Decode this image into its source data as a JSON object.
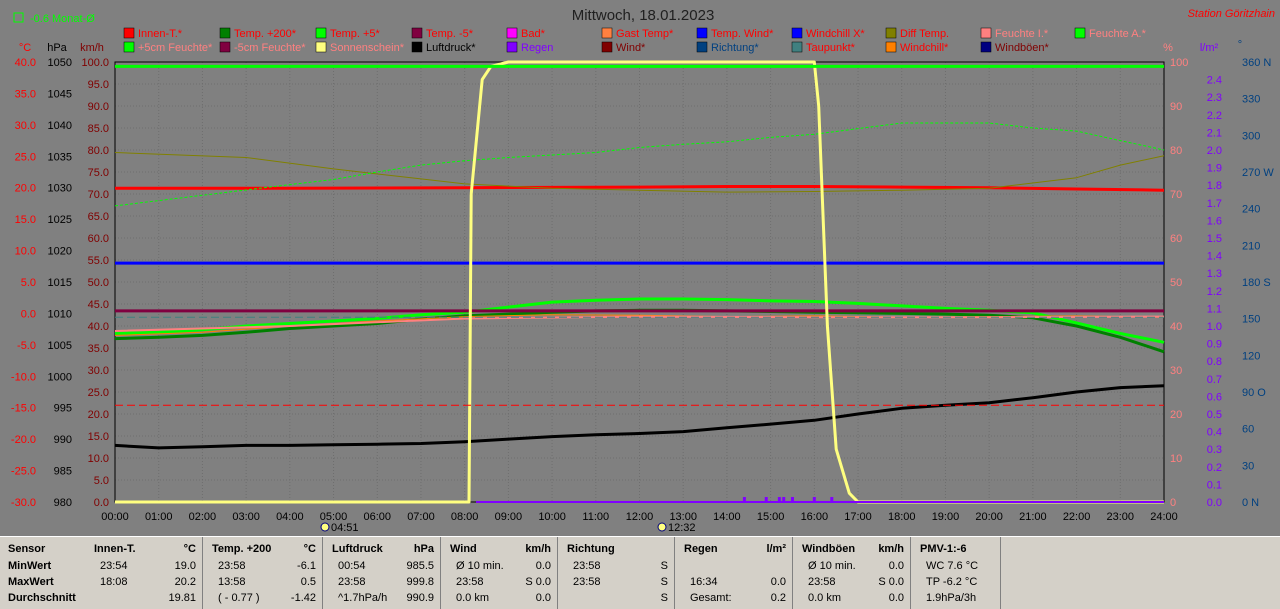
{
  "header": {
    "title": "Mittwoch, 18.01.2023",
    "station": "Station Göritzhain",
    "month_avg": "-0.6 Monat-Ø"
  },
  "axes": {
    "left_temp_unit": "°C",
    "left_press_unit": "hPa",
    "left_speed_unit": "km/h",
    "right_pct_unit": "%",
    "right_rain_unit": "l/m²",
    "right_dir_unit": "°",
    "temp_ticks": [
      "40.0",
      "35.0",
      "30.0",
      "25.0",
      "20.0",
      "15.0",
      "10.0",
      "5.0",
      "0.0",
      "-5.0",
      "-10.0",
      "-15.0",
      "-20.0",
      "-25.0",
      "-30.0"
    ],
    "press_ticks": [
      "1050",
      "1045",
      "1040",
      "1035",
      "1030",
      "1025",
      "1020",
      "1015",
      "1010",
      "1005",
      "1000",
      "995",
      "990",
      "985",
      "980"
    ],
    "speed_ticks": [
      "100.0",
      "95.0",
      "90.0",
      "85.0",
      "80.0",
      "75.0",
      "70.0",
      "65.0",
      "60.0",
      "55.0",
      "50.0",
      "45.0",
      "40.0",
      "35.0",
      "30.0",
      "25.0",
      "20.0",
      "15.0",
      "10.0",
      "5.0",
      "0.0"
    ],
    "pct_ticks": [
      "100",
      "90",
      "80",
      "70",
      "60",
      "50",
      "40",
      "30",
      "20",
      "10",
      "0"
    ],
    "rain_ticks": [
      "2.4",
      "2.3",
      "2.2",
      "2.1",
      "2.0",
      "1.9",
      "1.8",
      "1.7",
      "1.6",
      "1.5",
      "1.4",
      "1.3",
      "1.2",
      "1.1",
      "1.0",
      "0.9",
      "0.8",
      "0.7",
      "0.6",
      "0.5",
      "0.4",
      "0.3",
      "0.2",
      "0.1",
      "0.0"
    ],
    "dir_ticks": [
      "360 N",
      "330",
      "300",
      "270 W",
      "240",
      "210",
      "180 S",
      "150",
      "120",
      "90 O",
      "60",
      "30",
      "0 N"
    ],
    "time_ticks": [
      "00:00",
      "01:00",
      "02:00",
      "03:00",
      "04:00",
      "05:00",
      "06:00",
      "07:00",
      "08:00",
      "09:00",
      "10:00",
      "11:00",
      "12:00",
      "13:00",
      "14:00",
      "15:00",
      "16:00",
      "17:00",
      "18:00",
      "19:00",
      "20:00",
      "21:00",
      "22:00",
      "23:00",
      "24:00"
    ],
    "sunrise": "04:51",
    "noon": "12:32"
  },
  "legend": [
    {
      "label": "Innen-T.*",
      "color": "#ff0000",
      "text_color": "#ff0000"
    },
    {
      "label": "Temp. +200*",
      "color": "#008000",
      "text_color": "#ff0000"
    },
    {
      "label": "Temp. +5*",
      "color": "#00ff00",
      "text_color": "#ff0000"
    },
    {
      "label": "Temp. -5*",
      "color": "#800040",
      "text_color": "#ff0000"
    },
    {
      "label": "Bad*",
      "color": "#ff00ff",
      "text_color": "#ff0000"
    },
    {
      "label": "Gast Temp*",
      "color": "#ff8040",
      "text_color": "#ff0000"
    },
    {
      "label": "Temp. Wind*",
      "color": "#0000ff",
      "text_color": "#ff0000"
    },
    {
      "label": "Windchill X*",
      "color": "#0000ff",
      "text_color": "#ff0000"
    },
    {
      "label": "Diff Temp.",
      "color": "#808000",
      "text_color": "#ff0000"
    },
    {
      "label": "Feuchte I.*",
      "color": "#ff8080",
      "text_color": "#ff8080"
    },
    {
      "label": "Feuchte A.*",
      "color": "#00ff00",
      "text_color": "#ff8080"
    },
    {
      "label": "+5cm Feuchte*",
      "color": "#00ff00",
      "text_color": "#ff8080"
    },
    {
      "label": "-5cm Feuchte*",
      "color": "#800040",
      "text_color": "#ff8080"
    },
    {
      "label": "Sonnenschein*",
      "color": "#ffff80",
      "text_color": "#ff8080"
    },
    {
      "label": "Luftdruck*",
      "color": "#000000",
      "text_color": "#000000"
    },
    {
      "label": "Regen",
      "color": "#8000ff",
      "text_color": "#8000ff"
    },
    {
      "label": "Wind*",
      "color": "#800000",
      "text_color": "#800000"
    },
    {
      "label": "Richtung*",
      "color": "#004080",
      "text_color": "#004080"
    },
    {
      "label": "Taupunkt*",
      "color": "#408080",
      "text_color": "#ff0000"
    },
    {
      "label": "Windchill*",
      "color": "#ff8000",
      "text_color": "#ff0000"
    },
    {
      "label": "Windböen*",
      "color": "#000080",
      "text_color": "#800000"
    }
  ],
  "chart_data": {
    "type": "line",
    "title": "Mittwoch, 18.01.2023",
    "x_unit": "hours",
    "xlim": [
      0,
      24
    ],
    "scales": {
      "temp_C": [
        -30,
        40
      ],
      "pressure_hPa": [
        980,
        1050
      ],
      "speed_kmh": [
        0,
        100
      ],
      "percent": [
        0,
        100
      ],
      "rain_lm2": [
        0,
        2.5
      ],
      "direction_deg": [
        0,
        360
      ]
    },
    "series": [
      {
        "name": "Innen-T.*",
        "scale": "temp_C",
        "color": "#ff0000",
        "width": 3,
        "x": [
          0,
          4,
          8,
          12,
          14,
          16,
          18,
          20,
          22,
          24
        ],
        "y": [
          19.9,
          19.9,
          20.0,
          20.1,
          20.2,
          20.2,
          20.1,
          20.0,
          19.8,
          19.6
        ]
      },
      {
        "name": "Temp. +200*",
        "scale": "temp_C",
        "color": "#008000",
        "width": 3,
        "x": [
          0,
          1,
          2,
          3,
          4,
          5,
          6,
          7,
          8,
          9,
          10,
          11,
          12,
          13,
          14,
          15,
          16,
          17,
          18,
          19,
          20,
          21,
          22,
          23,
          24
        ],
        "y": [
          -4.0,
          -3.8,
          -3.5,
          -3.0,
          -2.4,
          -2.0,
          -1.6,
          -0.9,
          -0.4,
          -0.1,
          0.2,
          0.4,
          0.5,
          0.5,
          0.4,
          0.3,
          0.2,
          0.1,
          0.0,
          -0.1,
          -0.3,
          -0.7,
          -2.0,
          -3.8,
          -6.1
        ]
      },
      {
        "name": "Temp. +5*",
        "scale": "temp_C",
        "color": "#00ff00",
        "width": 3,
        "x": [
          0,
          1,
          2,
          3,
          4,
          5,
          6,
          7,
          8,
          9,
          10,
          11,
          12,
          13,
          14,
          15,
          16,
          17,
          18,
          19,
          20,
          21,
          22,
          23,
          24
        ],
        "y": [
          -3.2,
          -3.0,
          -2.6,
          -2.0,
          -1.6,
          -1.2,
          -0.8,
          -0.2,
          0.2,
          1.0,
          1.8,
          2.1,
          2.3,
          2.3,
          2.2,
          2.0,
          1.9,
          1.6,
          1.2,
          0.8,
          0.5,
          0.1,
          -1.5,
          -3.2,
          -4.6
        ]
      },
      {
        "name": "Temp. -5*",
        "scale": "temp_C",
        "color": "#800040",
        "width": 3,
        "x": [
          0,
          24
        ],
        "y": [
          0.4,
          0.4
        ]
      },
      {
        "name": "Windchill*",
        "scale": "temp_C",
        "color": "#ff8000",
        "width": 1,
        "x": [
          0,
          2,
          4,
          6,
          8,
          10,
          12,
          14,
          16,
          18,
          20,
          22,
          24
        ],
        "y": [
          -3.5,
          -3.0,
          -2.0,
          -1.2,
          -0.5,
          -0.2,
          -0.3,
          -0.5,
          -0.4,
          -0.6,
          -0.5,
          -0.4,
          -0.6
        ]
      },
      {
        "name": "Feuchte I.*",
        "scale": "temp_C",
        "color": "#ff8080",
        "width": 2,
        "x": [
          0,
          4,
          8,
          12,
          16,
          20,
          24
        ],
        "y": [
          -2.8,
          -2.0,
          -0.8,
          -0.5,
          -0.6,
          -0.6,
          -0.5
        ]
      },
      {
        "name": "Diff Temp.",
        "scale": "temp_C",
        "color": "#808000",
        "width": 1,
        "x": [
          0,
          3,
          5,
          7,
          8,
          10,
          12,
          14,
          16,
          18,
          20,
          22,
          23,
          24
        ],
        "y": [
          25.6,
          24.8,
          23.0,
          21.4,
          20.6,
          19.9,
          19.6,
          19.3,
          19.4,
          19.6,
          19.9,
          21.6,
          23.6,
          25.1
        ]
      },
      {
        "name": "+5cm Feuchte*",
        "scale": "temp_C",
        "color": "#00ff00",
        "width": 1,
        "dash": "3,2",
        "x": [
          0,
          2,
          4,
          5,
          6,
          7,
          8,
          9,
          10,
          11,
          12,
          13,
          14,
          15,
          16,
          17,
          18,
          19,
          20,
          21,
          22,
          23,
          24
        ],
        "y": [
          17.1,
          18.8,
          20.5,
          21.3,
          22.5,
          23.6,
          24.3,
          24.8,
          25.2,
          25.6,
          26.4,
          26.9,
          27.3,
          28.0,
          28.5,
          29.4,
          30.3,
          30.3,
          30.3,
          29.5,
          29.0,
          27.5,
          26.0
        ]
      },
      {
        "name": "Taupunkt*",
        "scale": "temp_C",
        "color": "#408080",
        "width": 1,
        "dash": "8,4",
        "x": [
          0,
          24
        ],
        "y": [
          -0.6,
          -0.6
        ]
      },
      {
        "name": "Temp. Wind*",
        "scale": "temp_C",
        "color": "#0000ff",
        "width": 3,
        "x": [
          0,
          24
        ],
        "y": [
          8.0,
          8.0
        ]
      },
      {
        "name": "Luftdruck*",
        "scale": "pressure_hPa",
        "color": "#000000",
        "width": 3,
        "x": [
          0,
          1,
          2,
          3,
          4,
          5,
          6,
          7,
          8,
          9,
          10,
          11,
          12,
          13,
          14,
          15,
          16,
          17,
          18,
          19,
          20,
          21,
          22,
          23,
          24
        ],
        "y": [
          989.0,
          988.6,
          988.8,
          989.0,
          989.0,
          989.1,
          989.2,
          989.3,
          989.6,
          990.0,
          990.4,
          990.7,
          990.9,
          991.2,
          991.8,
          992.4,
          993.0,
          994.0,
          994.9,
          995.4,
          995.8,
          996.6,
          997.5,
          998.2,
          998.5
        ]
      },
      {
        "name": "Sonnenschein*",
        "scale": "percent",
        "color": "#ffff80",
        "width": 3,
        "x": [
          0,
          8.1,
          8.15,
          8.4,
          8.6,
          9.0,
          16.0,
          16.1,
          16.3,
          16.5,
          16.8,
          17.0,
          24
        ],
        "y": [
          0,
          0,
          70,
          96,
          99,
          100,
          100,
          90,
          40,
          12,
          2,
          0,
          0
        ]
      },
      {
        "name": "Feuchte A.*",
        "scale": "percent",
        "color": "#00ff00",
        "width": 3,
        "x": [
          0,
          24
        ],
        "y": [
          99,
          99
        ]
      },
      {
        "name": "Windchill X*",
        "scale": "temp_C",
        "color": "#ff0000",
        "width": 1,
        "dash": "8,4",
        "x": [
          0,
          24
        ],
        "y": [
          -14.6,
          -14.6
        ]
      }
    ],
    "rain_ticks_at": [
      14.4,
      14.9,
      15.2,
      15.3,
      15.5,
      16.0,
      16.4
    ]
  },
  "stats": {
    "row_labels": {
      "header": "Sensor",
      "min": "MinWert",
      "max": "MaxWert",
      "avg": "Durchschnitt"
    },
    "columns": [
      {
        "title": "Innen-T.",
        "unit": "°C",
        "min": [
          "23:54",
          "19.0"
        ],
        "max": [
          "18:08",
          "20.2"
        ],
        "avg": [
          "",
          "19.81"
        ]
      },
      {
        "title": "Temp. +200",
        "unit": "°C",
        "min": [
          "23:58",
          "-6.1"
        ],
        "max": [
          "13:58",
          "0.5"
        ],
        "avg": [
          "( - 0.77 )",
          "-1.42"
        ]
      },
      {
        "title": "Luftdruck",
        "unit": "hPa",
        "min": [
          "00:54",
          "985.5"
        ],
        "max": [
          "23:58",
          "999.8"
        ],
        "avg": [
          "^1.7hPa/h",
          "990.9"
        ]
      },
      {
        "title": "Wind",
        "unit": "km/h",
        "min": [
          "Ø 10 min.",
          "0.0"
        ],
        "max": [
          "23:58",
          "S 0.0"
        ],
        "avg": [
          "0.0 km",
          "0.0"
        ]
      },
      {
        "title": "Richtung",
        "unit": "",
        "min": [
          "23:58",
          "S"
        ],
        "max": [
          "23:58",
          "S"
        ],
        "avg": [
          "",
          "S"
        ]
      },
      {
        "title": "Regen",
        "unit": "l/m²",
        "min": [
          "",
          ""
        ],
        "max": [
          "16:34",
          "0.0"
        ],
        "avg": [
          "Gesamt:",
          "0.2"
        ]
      },
      {
        "title": "Windböen",
        "unit": "km/h",
        "min": [
          "Ø 10 min.",
          "0.0"
        ],
        "max": [
          "23:58",
          "S 0.0"
        ],
        "avg": [
          "0.0 km",
          "0.0"
        ]
      },
      {
        "title": "PMV-1:-6",
        "unit": "",
        "min": [
          "WC 7.6 °C",
          ""
        ],
        "max": [
          "TP -6.2 °C",
          ""
        ],
        "avg": [
          "1.9hPa/3h",
          ""
        ]
      }
    ]
  }
}
